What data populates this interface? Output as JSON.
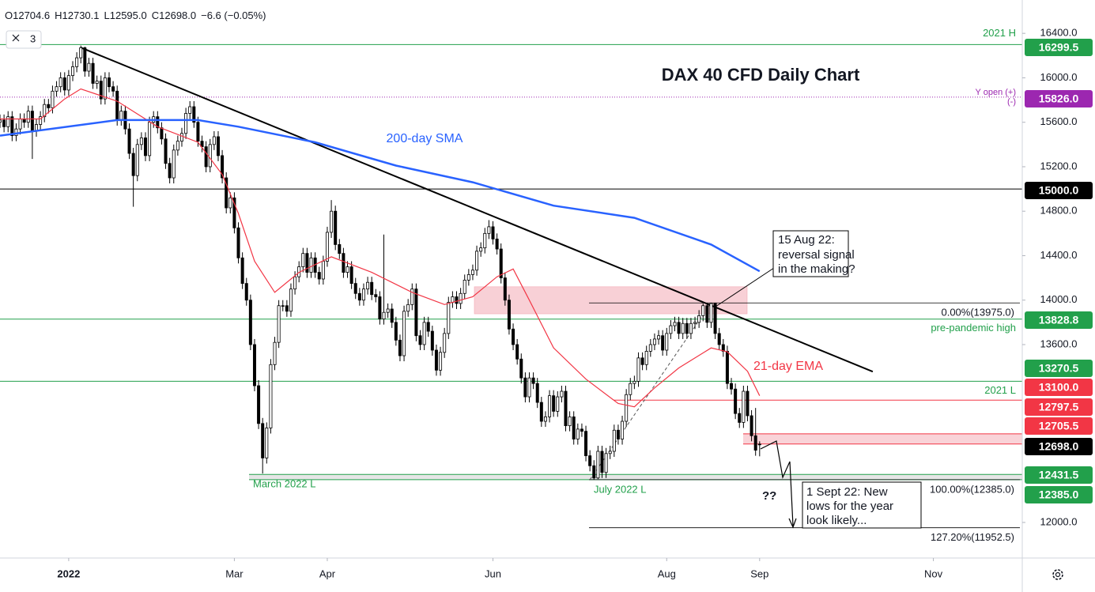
{
  "chart_data": {
    "type": "candlestick",
    "title": "DAX 40 CFD Daily Chart",
    "header": [
      "O12704.6",
      "H12730.1",
      "L12595.0",
      "C12698.0",
      "−6.6 (−0.05%)"
    ],
    "indicator_count": "3",
    "xlim": [
      0,
      253
    ],
    "xticks": [
      {
        "value": 17,
        "label": "2022"
      },
      {
        "value": 58,
        "label": "Mar"
      },
      {
        "value": 81,
        "label": "Apr"
      },
      {
        "value": 122,
        "label": "Jun"
      },
      {
        "value": 165,
        "label": "Aug"
      },
      {
        "value": 188,
        "label": "Sep"
      },
      {
        "value": 231,
        "label": "Nov"
      }
    ],
    "ylim": [
      11680,
      16700
    ],
    "yticks": [
      {
        "value": 16400,
        "label": "16400.0"
      },
      {
        "value": 16000,
        "label": "16000.0"
      },
      {
        "value": 15600,
        "label": "15600.0"
      },
      {
        "value": 15200,
        "label": "15200.0"
      },
      {
        "value": 14800,
        "label": "14800.0"
      },
      {
        "value": 14400,
        "label": "14400.0"
      },
      {
        "value": 14000,
        "label": "14000.0"
      },
      {
        "value": 13600,
        "label": "13600.0"
      },
      {
        "value": 12000,
        "label": "12000.0"
      }
    ],
    "grid": false,
    "up_color": "#ffffff",
    "down_color": "#000000",
    "open": [
      15600,
      15620,
      15560,
      15650,
      15480,
      15540,
      15630,
      15600,
      15700,
      15520,
      15580,
      15650,
      15760,
      15730,
      15880,
      15920,
      16000,
      15890,
      16020,
      16100,
      16180,
      16270,
      16060,
      16130,
      15950,
      15970,
      15810,
      16000,
      15920,
      15880,
      15620,
      15700,
      15540,
      15320,
      15120,
      15400,
      15460,
      15300,
      15600,
      15650,
      15550,
      15450,
      15230,
      15100,
      15350,
      15430,
      15500,
      15680,
      15740,
      15600,
      15430,
      15380,
      15200,
      15400,
      15470,
      15300,
      15100,
      14830,
      14920,
      14650,
      14380,
      14150,
      14000,
      13600,
      13230,
      12890,
      12580,
      12850,
      13420,
      13620,
      13950,
      13950,
      13900,
      14100,
      14210,
      14300,
      14420,
      14250,
      14380,
      14250,
      14190,
      14350,
      14610,
      14800,
      14500,
      14420,
      14250,
      14300,
      14150,
      14060,
      14000,
      14100,
      14160,
      14050,
      14030,
      13830,
      13890,
      13920,
      13800,
      13640,
      13500,
      13900,
      13960,
      14100,
      13680,
      13600,
      13800,
      13720,
      13550,
      13370,
      13530,
      13700,
      13980,
      14030,
      13970,
      14060,
      14180,
      14230,
      14270,
      14440,
      14470,
      14600,
      14660,
      14550,
      14460,
      14200,
      14000,
      13740,
      13600,
      13470,
      13300,
      13130,
      13300,
      13250,
      13080,
      12910,
      12950,
      13140,
      13000,
      13130,
      13180,
      12870,
      12950,
      12750,
      12840,
      12820,
      12600,
      12510,
      12400,
      12640,
      12450,
      12620,
      12640,
      12830,
      12750,
      12910,
      13150,
      13250,
      13270,
      13480,
      13420,
      13540,
      13600,
      13650,
      13680,
      13550,
      13700,
      13770,
      13800,
      13700,
      13790,
      13700,
      13790,
      13800,
      13860,
      13950,
      13800,
      13970,
      13700,
      13600,
      13540,
      13250,
      13200,
      12980,
      12900,
      13180,
      12960,
      12780,
      12704.6
    ],
    "high": [
      15670,
      15670,
      15700,
      15700,
      15590,
      15680,
      15680,
      15750,
      15750,
      15630,
      15700,
      15810,
      15810,
      15930,
      15970,
      16050,
      16050,
      16070,
      16150,
      16230,
      16290,
      16280,
      16180,
      16180,
      16020,
      16020,
      16050,
      16050,
      15970,
      15930,
      15750,
      15750,
      15590,
      15370,
      15450,
      15510,
      15510,
      15650,
      15700,
      15700,
      15600,
      15500,
      15280,
      15400,
      15480,
      15550,
      15730,
      15790,
      15790,
      15650,
      15480,
      15430,
      15450,
      15520,
      15520,
      15350,
      15150,
      14970,
      14970,
      14700,
      14430,
      14200,
      14050,
      13650,
      13280,
      12940,
      12900,
      13470,
      13670,
      14000,
      14000,
      14000,
      14150,
      14260,
      14350,
      14470,
      14470,
      14430,
      14430,
      14300,
      14400,
      14660,
      14900,
      14850,
      14550,
      14470,
      14350,
      14350,
      14200,
      14110,
      14150,
      14210,
      14210,
      14100,
      14080,
      14590,
      13970,
      13970,
      13850,
      13690,
      13950,
      14010,
      14150,
      14150,
      13730,
      13850,
      13850,
      13770,
      13600,
      13580,
      13750,
      14030,
      14080,
      14080,
      14110,
      14230,
      14280,
      14320,
      14490,
      14520,
      14650,
      14720,
      14710,
      14600,
      14510,
      14250,
      14050,
      13790,
      13650,
      13520,
      13350,
      13350,
      13350,
      13300,
      13130,
      13000,
      13190,
      13190,
      13180,
      13230,
      13230,
      13000,
      13000,
      12890,
      12890,
      12870,
      12650,
      12560,
      12690,
      12690,
      12670,
      12690,
      12880,
      12880,
      12960,
      13200,
      13300,
      13320,
      13530,
      13530,
      13590,
      13650,
      13700,
      13730,
      13730,
      13750,
      13820,
      13850,
      13850,
      13840,
      13840,
      13840,
      13850,
      13910,
      13970,
      13970,
      13975,
      13975,
      13750,
      13650,
      13590,
      13300,
      13250,
      13030,
      13230,
      13230,
      13010,
      13030,
      12730.1
    ],
    "low": [
      15550,
      15510,
      15510,
      15430,
      15430,
      15490,
      15550,
      15550,
      15270,
      15470,
      15530,
      15600,
      15680,
      15680,
      15830,
      15870,
      15840,
      15840,
      15970,
      16050,
      16130,
      16010,
      16010,
      15900,
      15900,
      15760,
      15760,
      15870,
      15830,
      15570,
      15570,
      15490,
      15270,
      14840,
      15070,
      15350,
      15250,
      15250,
      15550,
      15500,
      15400,
      15180,
      15050,
      15050,
      15300,
      15380,
      15450,
      15630,
      15550,
      15380,
      15330,
      15150,
      15150,
      15350,
      15250,
      15050,
      14780,
      14780,
      14600,
      14330,
      14100,
      13950,
      13550,
      13180,
      12840,
      12440,
      12530,
      12800,
      13370,
      13570,
      13900,
      13850,
      13850,
      14050,
      14160,
      14250,
      14200,
      14200,
      14200,
      14140,
      14140,
      14300,
      14560,
      14450,
      14370,
      14200,
      14200,
      14100,
      14010,
      13950,
      13950,
      14050,
      14000,
      13980,
      13780,
      13780,
      13840,
      13750,
      13590,
      13450,
      13450,
      13850,
      13910,
      13630,
      13550,
      13550,
      13670,
      13500,
      13320,
      13320,
      13480,
      13650,
      13930,
      13920,
      13920,
      14010,
      14130,
      14180,
      14220,
      14390,
      14420,
      14550,
      14500,
      14410,
      14150,
      13950,
      13690,
      13550,
      13420,
      13250,
      13080,
      13080,
      13200,
      13030,
      12860,
      12860,
      12900,
      12950,
      12950,
      13080,
      12820,
      12820,
      12700,
      12700,
      12770,
      12550,
      12460,
      12385,
      12390,
      12400,
      12400,
      12570,
      12590,
      12700,
      12700,
      12860,
      13100,
      13200,
      13220,
      13370,
      13370,
      13490,
      13550,
      13600,
      13500,
      13500,
      13650,
      13720,
      13650,
      13650,
      13650,
      13650,
      13740,
      13750,
      13810,
      13750,
      13750,
      13650,
      13550,
      13490,
      13200,
      13150,
      12930,
      12850,
      12850,
      12910,
      12730,
      12600,
      12595
    ],
    "close": [
      15620,
      15560,
      15650,
      15480,
      15540,
      15630,
      15600,
      15700,
      15520,
      15580,
      15650,
      15760,
      15730,
      15880,
      15920,
      16000,
      15890,
      16020,
      16100,
      16180,
      16270,
      16060,
      16130,
      15950,
      15970,
      15810,
      16000,
      15920,
      15880,
      15620,
      15700,
      15540,
      15320,
      15120,
      15400,
      15460,
      15300,
      15600,
      15650,
      15550,
      15450,
      15230,
      15100,
      15350,
      15430,
      15500,
      15680,
      15740,
      15600,
      15430,
      15380,
      15200,
      15400,
      15470,
      15300,
      15100,
      14830,
      14920,
      14650,
      14380,
      14150,
      14000,
      13600,
      13230,
      12890,
      12580,
      12850,
      13420,
      13620,
      13950,
      13950,
      13900,
      14100,
      14210,
      14300,
      14420,
      14250,
      14380,
      14250,
      14190,
      14350,
      14610,
      14800,
      14500,
      14420,
      14250,
      14300,
      14150,
      14060,
      14000,
      14100,
      14160,
      14050,
      14030,
      13830,
      13890,
      13920,
      13800,
      13640,
      13500,
      13900,
      13960,
      14100,
      13680,
      13600,
      13800,
      13720,
      13550,
      13370,
      13530,
      13700,
      13980,
      14030,
      13970,
      14060,
      14180,
      14230,
      14270,
      14440,
      14470,
      14600,
      14660,
      14550,
      14460,
      14200,
      14000,
      13740,
      13600,
      13470,
      13300,
      13130,
      13300,
      13250,
      13080,
      12910,
      12950,
      13140,
      13000,
      13130,
      13180,
      12870,
      12950,
      12750,
      12840,
      12820,
      12600,
      12510,
      12400,
      12640,
      12450,
      12620,
      12640,
      12830,
      12750,
      12910,
      13150,
      13250,
      13270,
      13480,
      13420,
      13540,
      13600,
      13650,
      13680,
      13550,
      13700,
      13770,
      13800,
      13700,
      13790,
      13700,
      13790,
      13800,
      13860,
      13950,
      13800,
      13970,
      13700,
      13600,
      13540,
      13250,
      13200,
      12980,
      12900,
      13180,
      12960,
      12780,
      12650,
      12698
    ],
    "series": [
      {
        "name": "21-day EMA",
        "color": "#f23645",
        "width": 1.2,
        "x": [
          0,
          6,
          10,
          16,
          20,
          29,
          39,
          49,
          55,
          59,
          63,
          68,
          74,
          82,
          92,
          102,
          110,
          117,
          123,
          127,
          131,
          137,
          145,
          153,
          157,
          162,
          168,
          176,
          180,
          185,
          188
        ],
        "values": [
          15630,
          15630,
          15630,
          15810,
          15900,
          15790,
          15560,
          15420,
          15130,
          14780,
          14350,
          14070,
          14250,
          14390,
          14250,
          14070,
          13960,
          14030,
          14210,
          14280,
          14000,
          13570,
          13290,
          13070,
          13040,
          13210,
          13390,
          13570,
          13535,
          13360,
          13140
        ]
      },
      {
        "name": "200-day SMA",
        "color": "#2962ff",
        "width": 2.5,
        "x": [
          0,
          29,
          49,
          59,
          78,
          98,
          117,
          137,
          157,
          176,
          188
        ],
        "values": [
          15480,
          15620,
          15620,
          15560,
          15420,
          15210,
          15060,
          14850,
          14740,
          14500,
          14260
        ]
      }
    ],
    "trendline": {
      "x": [
        20,
        216
      ],
      "values": [
        16272,
        13357
      ],
      "color": "#000000"
    },
    "zones": [
      {
        "low": 13877,
        "high": 14120,
        "color": "#f8d0d6"
      }
    ],
    "levels": [
      {
        "value": 16299.5,
        "label": "16299.5",
        "color": "#22a04b",
        "line": "solid",
        "note": "2021 H"
      },
      {
        "value": 15826.0,
        "label": "15826.0",
        "color": "#9c27b0",
        "line": "dotted",
        "note": "Y open (+)",
        "note2": "(-)"
      },
      {
        "value": 15000.0,
        "label": "15000.0",
        "color": "#000000",
        "line": "solid"
      },
      {
        "value": 13828.8,
        "label": "13828.8",
        "color": "#22a04b",
        "line": "solid",
        "note": "pre-pandemic high"
      },
      {
        "value": 13270.5,
        "label": "13270.5",
        "color": "#22a04b",
        "line": "solid",
        "note": "2021 L"
      },
      {
        "value": 13100.0,
        "label": "13100.0",
        "color": "#f23645",
        "line": "solid"
      },
      {
        "value": 12797.5,
        "label": "12797.5",
        "color": "#f23645",
        "line": "solid",
        "fill": "#f9d3d8"
      },
      {
        "value": 12705.5,
        "label": "12705.5",
        "color": "#f23645",
        "line": "solid"
      },
      {
        "value": 12698.0,
        "label": "12698.0",
        "color": "#000000",
        "line": "none"
      },
      {
        "value": 12431.5,
        "label": "12431.5",
        "color": "#22a04b",
        "line": "solid",
        "fill": "#e6e6e6"
      },
      {
        "value": 12385.0,
        "label": "12385.0",
        "color": "#22a04b",
        "line": "solid"
      }
    ],
    "fib": {
      "x": [
        146,
        176
      ],
      "values": [
        12385,
        13975
      ],
      "lines": [
        {
          "value": 13975,
          "label": "0.00%(13975.0)"
        },
        {
          "value": 12385,
          "label": "100.00%(12385.0)"
        },
        {
          "value": 11952.5,
          "label": "127.20%(11952.5)"
        }
      ]
    },
    "annotations": {
      "sma": "200-day SMA",
      "ema": "21-day EMA",
      "march_low": "March 2022 L",
      "july_low": "July 2022 L",
      "question": "??",
      "reversal": [
        "15 Aug 22:",
        "reversal signal",
        "in the making?"
      ],
      "new_lows": [
        "1 Sept 22: New",
        "lows for the year",
        "look likely..."
      ]
    }
  }
}
